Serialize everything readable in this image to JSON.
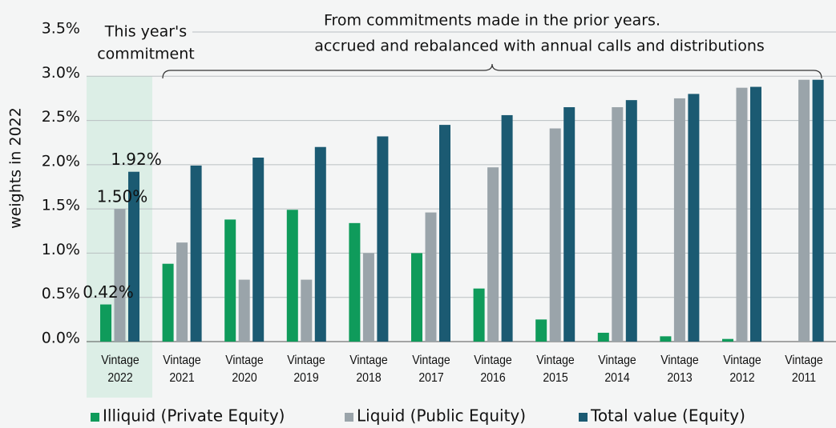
{
  "chart_data": {
    "type": "bar",
    "y_label": "weights in 2022",
    "annotations": [
      "This year's",
      "commitment",
      "From commitments made in the prior years.",
      "accrued and rebalanced with annual calls and distributions"
    ],
    "categories": [
      "Vintage 2022",
      "Vintage 2021",
      "Vintage 2020",
      "Vintage 2019",
      "Vintage 2018",
      "Vintage 2017",
      "Vintage 2016",
      "Vintage 2015",
      "Vintage 2014",
      "Vintage 2013",
      "Vintage 2012",
      "Vintage 2011"
    ],
    "series": [
      {
        "name": "Illiquid (Private Equity)",
        "color": "#0f9b5b",
        "values": [
          0.42,
          0.88,
          1.38,
          1.49,
          1.34,
          1.0,
          0.6,
          0.25,
          0.1,
          0.06,
          0.03,
          0
        ],
        "value_labels": [
          "0.42%",
          null,
          null,
          null,
          null,
          null,
          null,
          null,
          null,
          null,
          null,
          null
        ]
      },
      {
        "name": "Liquid (Public Equity)",
        "color": "#9aa4aa",
        "values": [
          1.5,
          1.12,
          0.7,
          0.7,
          1.0,
          1.46,
          1.97,
          2.41,
          2.65,
          2.75,
          2.87,
          2.96
        ],
        "value_labels": [
          "1.50%",
          null,
          null,
          null,
          null,
          null,
          null,
          null,
          null,
          null,
          null,
          null
        ]
      },
      {
        "name": "Total value (Equity)",
        "color": "#1b5a72",
        "values": [
          1.92,
          1.99,
          2.08,
          2.2,
          2.32,
          2.45,
          2.56,
          2.65,
          2.73,
          2.8,
          2.88,
          2.96
        ],
        "value_labels": [
          "1.92%",
          null,
          null,
          null,
          null,
          null,
          null,
          null,
          null,
          null,
          null,
          null
        ]
      }
    ],
    "ylim": [
      0,
      3.5
    ],
    "yticks": [
      {
        "value": 0,
        "label": "0.0%"
      },
      {
        "value": 0.5,
        "label": "0.5%"
      },
      {
        "value": 1,
        "label": "1.0%"
      },
      {
        "value": 1.5,
        "label": "1.5%"
      },
      {
        "value": 2,
        "label": "2.0%"
      },
      {
        "value": 2.5,
        "label": "2.5%"
      },
      {
        "value": 3,
        "label": "3.0%"
      },
      {
        "value": 3.5,
        "label": "3.5%"
      }
    ],
    "grid": true
  }
}
